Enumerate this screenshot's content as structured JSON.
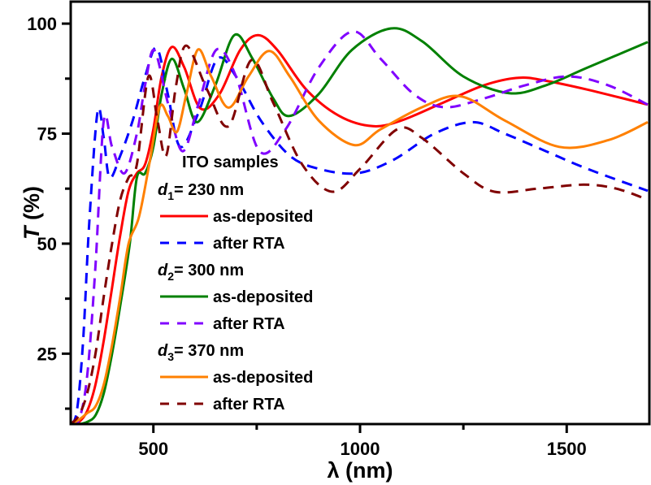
{
  "chart_data": {
    "type": "line",
    "title": "",
    "xlabel": "λ (nm)",
    "ylabel_italic": "T",
    "ylabel_rest": " (%)",
    "xlim": [
      300,
      1700
    ],
    "ylim": [
      9,
      105
    ],
    "x_ticks": [
      500,
      1000,
      1500
    ],
    "x_minor_ticks": [
      750,
      1250
    ],
    "y_ticks": [
      25,
      50,
      75,
      100
    ],
    "y_minor_ticks": [
      12.5,
      37.5,
      62.5,
      87.5
    ],
    "grid": false,
    "legend": {
      "placement": "center-left",
      "title": "ITO samples",
      "groups": [
        {
          "label_sym": "d",
          "label_sub": "1",
          "label_rest": "= 230 nm"
        },
        {
          "label_sym": "d",
          "label_sub": "2",
          "label_rest": "= 300 nm"
        },
        {
          "label_sym": "d",
          "label_sub": "3",
          "label_rest": "= 370 nm"
        }
      ]
    },
    "series": [
      {
        "name": "as-deposited",
        "group": "d1 = 230 nm",
        "color": "#ff0000",
        "dash": false,
        "x": [
          300,
          320,
          340,
          360,
          380,
          400,
          420,
          440,
          460,
          480,
          500,
          520,
          545,
          575,
          614,
          660,
          710,
          753,
          800,
          870,
          950,
          1031,
          1100,
          1200,
          1300,
          1384,
          1450,
          1550,
          1696
        ],
        "y": [
          9,
          9.5,
          12,
          18,
          28,
          40,
          52,
          62,
          66,
          68,
          76,
          88,
          94.7,
          90,
          80.7,
          84,
          94,
          97.4,
          94,
          85,
          79,
          76.7,
          78,
          82,
          86,
          87.7,
          87,
          85,
          81.6
        ]
      },
      {
        "name": "after RTA",
        "group": "d1 = 230 nm",
        "color": "#0000ff",
        "dash": true,
        "x": [
          300,
          315,
          330,
          345,
          365,
          380,
          394,
          420,
          450,
          480,
          508,
          535,
          565,
          610,
          655,
          700,
          760,
          830,
          900,
          992,
          1080,
          1180,
          1273,
          1350,
          1450,
          1550,
          1696
        ],
        "y": [
          9,
          12,
          28,
          55,
          80,
          74,
          65,
          70,
          78,
          88,
          94.5,
          84,
          72,
          80,
          92,
          88,
          78,
          70,
          67,
          66,
          69,
          75,
          77.6,
          75,
          71,
          67,
          62
        ]
      },
      {
        "name": "as-deposited",
        "group": "d2 = 300 nm",
        "color": "#008000",
        "dash": false,
        "x": [
          300,
          320,
          340,
          360,
          380,
          400,
          420,
          443,
          460,
          480,
          500,
          520,
          545,
          575,
          606,
          650,
          696,
          740,
          790,
          829,
          900,
          980,
          1075,
          1150,
          1250,
          1361,
          1450,
          1550,
          1696
        ],
        "y": [
          9,
          9,
          9.5,
          11,
          16,
          25,
          36,
          50,
          65,
          66,
          72,
          84,
          92,
          85,
          77.6,
          86,
          97.4,
          92,
          83,
          79,
          84,
          94,
          98.9,
          96,
          88,
          84.2,
          86,
          90,
          95.8
        ]
      },
      {
        "name": "after RTA",
        "group": "d2 = 300 nm",
        "color": "#8000ff",
        "dash": true,
        "x": [
          300,
          320,
          340,
          360,
          380,
          400,
          430,
          460,
          480,
          502,
          535,
          571,
          610,
          653,
          700,
          757,
          820,
          900,
          982,
          1050,
          1130,
          1204,
          1300,
          1400,
          1502,
          1600,
          1696
        ],
        "y": [
          9,
          10,
          20,
          45,
          78,
          72,
          66,
          75,
          86,
          94,
          82,
          71,
          82,
          94.1,
          88,
          71,
          76,
          90,
          98.2,
          92,
          84,
          81,
          83,
          86,
          88,
          86,
          81.6
        ]
      },
      {
        "name": "as-deposited",
        "group": "d3 = 370 nm",
        "color": "#ff8000",
        "dash": false,
        "x": [
          300,
          320,
          340,
          360,
          380,
          400,
          420,
          440,
          465,
          490,
          515,
          535,
          557,
          580,
          608,
          640,
          682,
          730,
          780,
          830,
          900,
          986,
          1050,
          1150,
          1243,
          1350,
          1482,
          1600,
          1696
        ],
        "y": [
          9,
          10,
          11.5,
          13,
          18,
          27,
          38,
          50,
          56,
          68,
          81,
          79,
          75.4,
          84,
          94.1,
          88,
          80.9,
          88,
          93.8,
          88,
          78,
          72.4,
          76,
          81,
          83.5,
          78,
          72,
          73.5,
          77.6
        ]
      },
      {
        "name": "after RTA",
        "group": "d3 = 370 nm",
        "color": "#800000",
        "dash": true,
        "x": [
          300,
          320,
          340,
          360,
          380,
          400,
          420,
          440,
          460,
          488,
          510,
          531,
          555,
          580,
          630,
          682,
          737,
          790,
          860,
          933,
          1000,
          1090,
          1150,
          1250,
          1325,
          1430,
          1541,
          1620,
          1696
        ],
        "y": [
          9,
          11,
          16,
          25,
          38,
          50,
          60,
          65,
          68,
          88,
          78,
          70,
          86,
          95,
          85,
          76.7,
          91.7,
          82,
          68,
          61.8,
          67,
          76,
          74,
          66,
          61.8,
          62.5,
          63.4,
          62.5,
          60
        ]
      }
    ]
  }
}
